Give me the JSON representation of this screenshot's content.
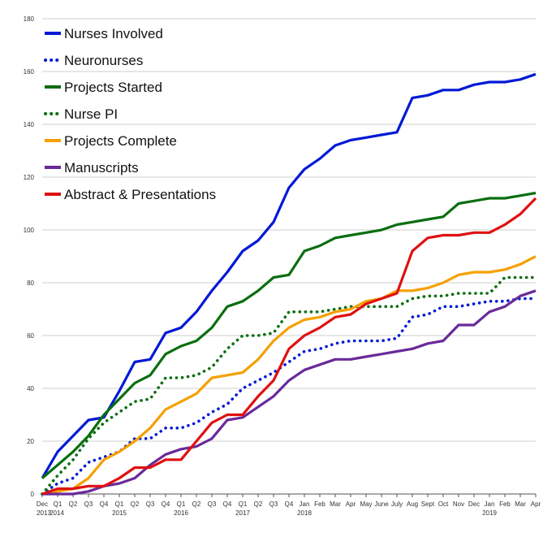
{
  "chart_data": {
    "type": "line",
    "title": "",
    "xlabel": "",
    "ylabel": "",
    "ylim": [
      0,
      180
    ],
    "yticks": [
      0,
      20,
      40,
      60,
      80,
      100,
      120,
      140,
      160,
      180
    ],
    "grid": true,
    "legend_position": "top-left",
    "categories": [
      "Dec",
      "Q1",
      "Q2",
      "Q3",
      "Q4",
      "Q1",
      "Q2",
      "Q3",
      "Q4",
      "Q1",
      "Q2",
      "Q3",
      "Q4",
      "Q1",
      "Q2",
      "Q3",
      "Q4",
      "Jan",
      "Feb",
      "Mar",
      "Apr",
      "May",
      "June",
      "July",
      "Aug",
      "Sept",
      "Oct",
      "Nov",
      "Dec",
      "Jan",
      "Feb",
      "Mar",
      "Apr"
    ],
    "year_labels": [
      {
        "index": 0,
        "label": "2013"
      },
      {
        "index": 1,
        "label": "2014"
      },
      {
        "index": 5,
        "label": "2015"
      },
      {
        "index": 9,
        "label": "2016"
      },
      {
        "index": 13,
        "label": "2017"
      },
      {
        "index": 17,
        "label": "2018"
      },
      {
        "index": 29,
        "label": "2019"
      }
    ],
    "series": [
      {
        "name": "Nurses Involved",
        "color": "#0019d6",
        "style": "solid",
        "values": [
          6,
          16,
          22,
          28,
          29,
          39,
          50,
          51,
          61,
          63,
          69,
          77,
          84,
          92,
          96,
          103,
          116,
          123,
          127,
          132,
          134,
          135,
          136,
          137,
          150,
          151,
          153,
          153,
          155,
          156,
          156,
          157,
          159
        ]
      },
      {
        "name": "Neuronurses",
        "color": "#0019d6",
        "style": "dotted",
        "values": [
          0,
          4,
          6,
          12,
          14,
          16,
          21,
          21,
          25,
          25,
          27,
          31,
          34,
          40,
          43,
          46,
          50,
          54,
          55,
          57,
          58,
          58,
          58,
          59,
          67,
          68,
          71,
          71,
          72,
          73,
          73,
          74,
          74
        ]
      },
      {
        "name": "Projects Started",
        "color": "#0a6e10",
        "style": "solid",
        "values": [
          6,
          11,
          16,
          22,
          30,
          36,
          42,
          45,
          53,
          56,
          58,
          63,
          71,
          73,
          77,
          82,
          83,
          92,
          94,
          97,
          98,
          99,
          100,
          102,
          103,
          104,
          105,
          110,
          111,
          112,
          112,
          113,
          114
        ]
      },
      {
        "name": "Nurse PI",
        "color": "#0a6e10",
        "style": "dotted",
        "values": [
          0,
          7,
          13,
          21,
          27,
          31,
          35,
          36,
          44,
          44,
          45,
          48,
          55,
          60,
          60,
          61,
          69,
          69,
          69,
          70,
          71,
          71,
          71,
          71,
          74,
          75,
          75,
          76,
          76,
          76,
          82,
          82,
          82
        ]
      },
      {
        "name": "Projects Complete",
        "color": "#f5a000",
        "style": "solid",
        "values": [
          0,
          1,
          2,
          6,
          13,
          16,
          20,
          25,
          32,
          35,
          38,
          44,
          45,
          46,
          51,
          58,
          63,
          66,
          67,
          69,
          70,
          73,
          74,
          77,
          77,
          78,
          80,
          83,
          84,
          84,
          85,
          87,
          90
        ]
      },
      {
        "name": "Manuscripts",
        "color": "#6a2a9a",
        "style": "solid",
        "values": [
          0,
          0,
          0,
          1,
          3,
          4,
          6,
          11,
          15,
          17,
          18,
          21,
          28,
          29,
          33,
          37,
          43,
          47,
          49,
          51,
          51,
          52,
          53,
          54,
          55,
          57,
          58,
          64,
          64,
          69,
          71,
          75,
          77
        ]
      },
      {
        "name": "Abstract & Presentations",
        "color": "#e01010",
        "style": "solid",
        "values": [
          0,
          2,
          2,
          3,
          3,
          6,
          10,
          10,
          13,
          13,
          20,
          27,
          30,
          30,
          37,
          43,
          55,
          60,
          63,
          67,
          68,
          72,
          74,
          76,
          92,
          97,
          98,
          98,
          99,
          99,
          102,
          106,
          112
        ]
      }
    ]
  }
}
